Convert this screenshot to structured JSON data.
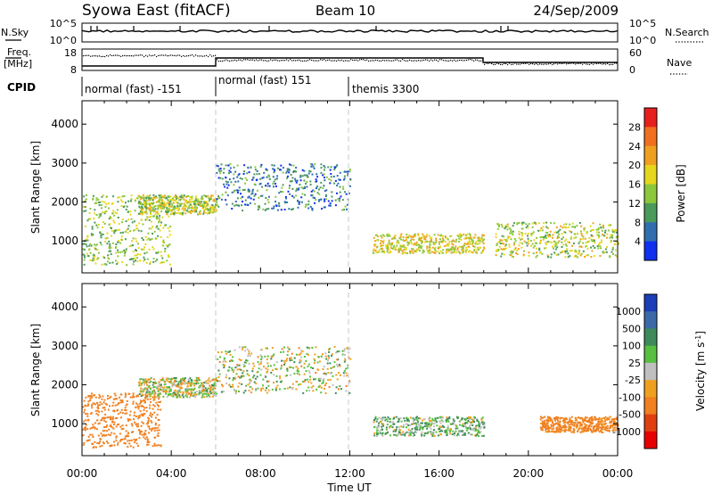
{
  "header": {
    "station": "Syowa East (fitACF)",
    "beam": "Beam 10",
    "date": "24/Sep/2009"
  },
  "left_labels": {
    "nsky": "N.Sky",
    "nsky_top": "10^5",
    "nsky_bottom": "10^0",
    "freq_line1": "Freq.",
    "freq_line2": "[MHz]",
    "freq_top": "18",
    "freq_bottom": "8",
    "cpid": "CPID"
  },
  "right_labels": {
    "nsky_top": "10^5",
    "nsky_bottom": "10^0",
    "nsearch": "N.Search",
    "nave_top": "60",
    "nave_bottom": "0",
    "nave": "Nave"
  },
  "cpid_segments": [
    {
      "label": "normal (fast) -151",
      "start": "00:00",
      "end": "06:00"
    },
    {
      "label": "normal (fast) 151",
      "start": "06:00",
      "end": "12:00"
    },
    {
      "label": "themis 3300",
      "start": "12:00",
      "end": "24:00"
    }
  ],
  "power_colorbar": {
    "label": "Power [dB]",
    "ticks": [
      "28",
      "24",
      "20",
      "16",
      "12",
      "8",
      "4"
    ],
    "colors": [
      "#e8201c",
      "#f07020",
      "#f0a020",
      "#e6d61e",
      "#8cc83c",
      "#4a9a5a",
      "#2f6fb0",
      "#1030f0"
    ]
  },
  "velocity_colorbar": {
    "label": "Velocity [m s",
    "label_sup": "-1",
    "label_end": "]",
    "ticks": [
      "1000",
      "500",
      "100",
      "25",
      "-25",
      "-100",
      "-500",
      "-1000"
    ],
    "colors": [
      "#1a3fb8",
      "#3a6aa8",
      "#3f8a5a",
      "#58c040",
      "#c0c0c0",
      "#f0a020",
      "#f08020",
      "#e04010",
      "#e80000"
    ]
  },
  "chart_data": [
    {
      "type": "heatmap",
      "title": "Power",
      "xlabel": "Time UT",
      "ylabel": "Slant Range [km]",
      "xlim": [
        "00:00",
        "24:00"
      ],
      "ylim": [
        180,
        4600
      ],
      "yticks": [
        1000,
        2000,
        3000,
        4000
      ],
      "xticks": [
        "00:00",
        "04:00",
        "08:00",
        "12:00",
        "16:00",
        "20:00",
        "00:00"
      ],
      "features": [
        {
          "t_start": 0.0,
          "t_end": 4.0,
          "range_start": 400,
          "range_end": 2200,
          "power_dB": 14
        },
        {
          "t_start": 2.5,
          "t_end": 6.0,
          "range_start": 1700,
          "range_end": 2200,
          "power_dB": 16
        },
        {
          "t_start": 6.0,
          "t_end": 12.0,
          "range_start": 1800,
          "range_end": 3000,
          "power_dB": 8
        },
        {
          "t_start": 13.0,
          "t_end": 18.0,
          "range_start": 700,
          "range_end": 1200,
          "power_dB": 18
        },
        {
          "t_start": 18.5,
          "t_end": 24.0,
          "range_start": 600,
          "range_end": 1500,
          "power_dB": 16
        }
      ]
    },
    {
      "type": "heatmap",
      "title": "Velocity",
      "xlabel": "Time UT",
      "ylabel": "Slant Range [km]",
      "xlim": [
        "00:00",
        "24:00"
      ],
      "ylim": [
        180,
        4600
      ],
      "yticks": [
        1000,
        2000,
        3000,
        4000
      ],
      "xticks": [
        "00:00",
        "04:00",
        "08:00",
        "12:00",
        "16:00",
        "20:00",
        "00:00"
      ],
      "features": [
        {
          "t_start": 0.0,
          "t_end": 3.5,
          "range_start": 400,
          "range_end": 1800,
          "velocity_ms": -300
        },
        {
          "t_start": 2.5,
          "t_end": 6.0,
          "range_start": 1700,
          "range_end": 2200,
          "velocity_ms": 0
        },
        {
          "t_start": 6.0,
          "t_end": 12.0,
          "range_start": 1800,
          "range_end": 3000,
          "velocity_ms": 10
        },
        {
          "t_start": 13.0,
          "t_end": 18.0,
          "range_start": 700,
          "range_end": 1200,
          "velocity_ms": 80
        },
        {
          "t_start": 20.5,
          "t_end": 24.0,
          "range_start": 800,
          "range_end": 1200,
          "velocity_ms": -200
        }
      ]
    }
  ],
  "x_axis": {
    "title": "Time UT",
    "ticks": [
      "00:00",
      "04:00",
      "08:00",
      "12:00",
      "16:00",
      "20:00",
      "00:00"
    ]
  }
}
